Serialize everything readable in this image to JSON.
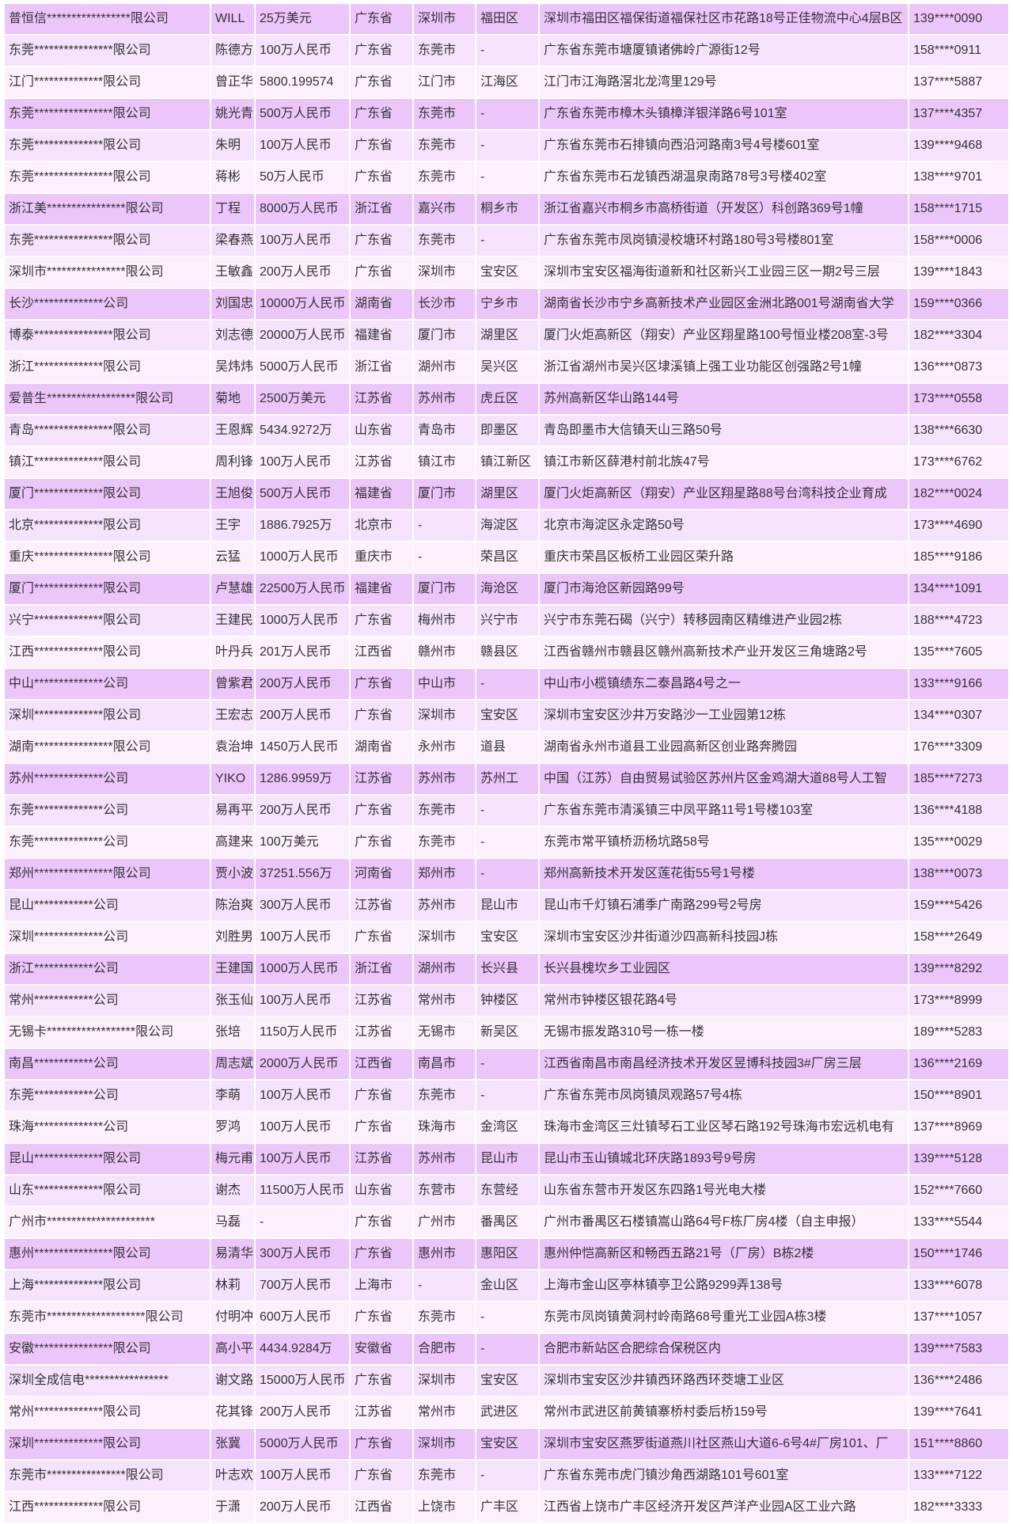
{
  "table": {
    "row_colors": [
      "#ecc6fb",
      "#f5e2fc",
      "#fcf0fd"
    ],
    "rows": [
      [
        "普恒信*****************限公司",
        "WILL",
        "25万美元",
        "广东省",
        "深圳市",
        "福田区",
        "深圳市福田区福保街道福保社区市花路18号正佳物流中心4层B区",
        "139****0090"
      ],
      [
        "东莞****************限公司",
        "陈德方",
        "100万人民币",
        "广东省",
        "东莞市",
        "-",
        "广东省东莞市塘厦镇诸佛岭广源街12号",
        "158****0911"
      ],
      [
        "江门**************限公司",
        "曾正华",
        "5800.199574",
        "广东省",
        "江门市",
        "江海区",
        "江门市江海路滘北龙湾里129号",
        "137****5887"
      ],
      [
        "东莞****************限公司",
        "姚光青",
        "500万人民币",
        "广东省",
        "东莞市",
        "-",
        "广东省东莞市樟木头镇樟洋银洋路6号101室",
        "137****4357"
      ],
      [
        "东莞**************限公司",
        "朱明",
        "100万人民币",
        "广东省",
        "东莞市",
        "-",
        "广东省东莞市石排镇向西沿河路南3号4号楼601室",
        "139****9468"
      ],
      [
        "东莞****************限公司",
        "蒋彬",
        "50万人民币",
        "广东省",
        "东莞市",
        "-",
        "广东省东莞市石龙镇西湖温泉南路78号3号楼402室",
        "138****9701"
      ],
      [
        "浙江美****************限公司",
        "丁程",
        "8000万人民币",
        "浙江省",
        "嘉兴市",
        "桐乡市",
        "浙江省嘉兴市桐乡市高桥街道（开发区）科创路369号1幢",
        "158****1715"
      ],
      [
        "东莞****************限公司",
        "梁春燕",
        "100万人民币",
        "广东省",
        "东莞市",
        "-",
        "广东省东莞市凤岗镇浸校塘环村路180号3号楼801室",
        "158****0006"
      ],
      [
        "深圳市****************限公司",
        "王敏鑫",
        "200万人民币",
        "广东省",
        "深圳市",
        "宝安区",
        "深圳市宝安区福海街道新和社区新兴工业园三区一期2号三层",
        "139****1843"
      ],
      [
        "长沙**************公司",
        "刘国忠",
        "10000万人民币",
        "湖南省",
        "长沙市",
        "宁乡市",
        "湖南省长沙市宁乡高新技术产业园区金洲北路001号湖南省大学",
        "159****0366"
      ],
      [
        "博泰****************限公司",
        "刘志德",
        "20000万人民币",
        "福建省",
        "厦门市",
        "湖里区",
        "厦门火炬高新区（翔安）产业区翔星路100号恒业楼208室-3号",
        "182****3304"
      ],
      [
        "浙江**************限公司",
        "吴炜炜",
        "5000万人民币",
        "浙江省",
        "湖州市",
        "吴兴区",
        "浙江省湖州市吴兴区埭溪镇上强工业功能区创强路2号1幢",
        "136****0873"
      ],
      [
        "爱普生******************限公司",
        "菊地",
        "2500万美元",
        "江苏省",
        "苏州市",
        "虎丘区",
        "苏州高新区华山路144号",
        "173****0558"
      ],
      [
        "青岛****************限公司",
        "王恩辉",
        "5434.9272万",
        "山东省",
        "青岛市",
        "即墨区",
        "青岛即墨市大信镇天山三路50号",
        "138****6630"
      ],
      [
        "镇江**************限公司",
        "周利锋",
        "100万人民币",
        "江苏省",
        "镇江市",
        "镇江新区",
        "镇江市新区薛港村前北族47号",
        "173****6762"
      ],
      [
        "厦门**************限公司",
        "王旭俊",
        "500万人民币",
        "福建省",
        "厦门市",
        "湖里区",
        "厦门火炬高新区（翔安）产业区翔星路88号台湾科技企业育成",
        "182****0024"
      ],
      [
        "北京**************限公司",
        "王宇",
        "1886.7925万",
        "北京市",
        "-",
        "海淀区",
        "北京市海淀区永定路50号",
        "173****4690"
      ],
      [
        "重庆****************限公司",
        "云猛",
        "1000万人民币",
        "重庆市",
        "-",
        "荣昌区",
        "重庆市荣昌区板桥工业园区荣升路",
        "185****9186"
      ],
      [
        "厦门**************限公司",
        "卢慧雄",
        "22500万人民币",
        "福建省",
        "厦门市",
        "海沧区",
        "厦门市海沧区新园路99号",
        "134****1091"
      ],
      [
        "兴宁**************限公司",
        "王建民",
        "1000万人民币",
        "广东省",
        "梅州市",
        "兴宁市",
        "兴宁市东莞石碣（兴宁）转移园南区精维进产业园2栋",
        "188****4723"
      ],
      [
        "江西**************限公司",
        "叶丹兵",
        "201万人民币",
        "江西省",
        "赣州市",
        "赣县区",
        "江西省赣州市赣县区赣州高新技术产业开发区三角塘路2号",
        "135****7605"
      ],
      [
        "中山**************公司",
        "曾紫君",
        "200万人民币",
        "广东省",
        "中山市",
        "-",
        "中山市小榄镇绩东二泰昌路4号之一",
        "133****9166"
      ],
      [
        "深圳**************限公司",
        "王宏志",
        "200万人民币",
        "广东省",
        "深圳市",
        "宝安区",
        "深圳市宝安区沙井万安路沙一工业园第12栋",
        "134****0307"
      ],
      [
        "湖南****************限公司",
        "袁治坤",
        "1450万人民币",
        "湖南省",
        "永州市",
        "道县",
        "湖南省永州市道县工业园高新区创业路奔腾园",
        "176****3309"
      ],
      [
        "苏州**************公司",
        "YIKO",
        "1286.9959万",
        "江苏省",
        "苏州市",
        "苏州工",
        "中国（江苏）自由贸易试验区苏州片区金鸡湖大道88号人工智",
        "185****7273"
      ],
      [
        "东莞**************公司",
        "易再平",
        "200万人民币",
        "广东省",
        "东莞市",
        "-",
        "广东省东莞市清溪镇三中凤平路11号1号楼103室",
        "136****4188"
      ],
      [
        "东莞**************公司",
        "高建来",
        "100万美元",
        "广东省",
        "东莞市",
        "-",
        "东莞市常平镇桥沥杨坑路58号",
        "135****0029"
      ],
      [
        "郑州****************限公司",
        "贾小波",
        "37251.556万",
        "河南省",
        "郑州市",
        "-",
        "郑州高新技术开发区莲花街55号1号楼",
        "138****0073"
      ],
      [
        "昆山************公司",
        "陈治爽",
        "300万人民币",
        "江苏省",
        "苏州市",
        "昆山市",
        "昆山市千灯镇石浦季广南路299号2号房",
        "159****5426"
      ],
      [
        "深圳**************公司",
        "刘胜男",
        "100万人民币",
        "广东省",
        "深圳市",
        "宝安区",
        "深圳市宝安区沙井街道沙四高新科技园J栋",
        "158****2649"
      ],
      [
        "浙江************公司",
        "王建国",
        "1000万人民币",
        "浙江省",
        "湖州市",
        "长兴县",
        "长兴县槐坎乡工业园区",
        "139****8292"
      ],
      [
        "常州************公司",
        "张玉仙",
        "100万人民币",
        "江苏省",
        "常州市",
        "钟楼区",
        "常州市钟楼区银花路4号",
        "173****8999"
      ],
      [
        "无锡卡******************限公司",
        "张培",
        "1150万人民币",
        "江苏省",
        "无锡市",
        "新吴区",
        "无锡市振发路310号一栋一楼",
        "189****5283"
      ],
      [
        "南昌************公司",
        "周志斌",
        "2000万人民币",
        "江西省",
        "南昌市",
        "-",
        "江西省南昌市南昌经济技术开发区昱博科技园3#厂房三层",
        "136****2169"
      ],
      [
        "东莞************公司",
        "李萌",
        "100万人民币",
        "广东省",
        "东莞市",
        "-",
        "广东省东莞市凤岗镇凤观路57号4栋",
        "150****8901"
      ],
      [
        "珠海**************公司",
        "罗鸿",
        "100万人民币",
        "广东省",
        "珠海市",
        "金湾区",
        "珠海市金湾区三灶镇琴石工业区琴石路192号珠海市宏远机电有",
        "137****8969"
      ],
      [
        "昆山**************限公司",
        "梅元甫",
        "100万人民币",
        "江苏省",
        "苏州市",
        "昆山市",
        "昆山市玉山镇城北环庆路1893号9号房",
        "139****5128"
      ],
      [
        "山东**************限公司",
        "谢杰",
        "11500万人民币",
        "山东省",
        "东营市",
        "东营经",
        "山东省东营市开发区东四路1号光电大楼",
        "152****7660"
      ],
      [
        "广州市**********************",
        "马磊",
        "-",
        "广东省",
        "广州市",
        "番禺区",
        "广州市番禺区石楼镇嵩山路64号F栋厂房4楼（自主申报）",
        "133****5544"
      ],
      [
        "惠州****************限公司",
        "易清华",
        "300万人民币",
        "广东省",
        "惠州市",
        "惠阳区",
        "惠州仲恺高新区和畅西五路21号（厂房）B栋2楼",
        "150****1746"
      ],
      [
        "上海**************限公司",
        "林莉",
        "700万人民币",
        "上海市",
        "-",
        "金山区",
        "上海市金山区亭林镇亭卫公路9299弄138号",
        "133****6078"
      ],
      [
        "东莞市********************限公司",
        "付明冲",
        "600万人民币",
        "广东省",
        "东莞市",
        "-",
        "东莞市凤岗镇黄洞村岭南路68号重光工业园A栋3楼",
        "137****1057"
      ],
      [
        "安徽****************限公司",
        "高小平",
        "4434.9284万",
        "安徽省",
        "合肥市",
        "-",
        "合肥市新站区合肥综合保税区内",
        "139****7583"
      ],
      [
        "深圳全成信电*****************",
        "谢文路",
        "15000万人民币",
        "广东省",
        "深圳市",
        "宝安区",
        "深圳市宝安区沙井镇西环路西环茭塘工业区",
        "136****2486"
      ],
      [
        "常州**************限公司",
        "花其锋",
        "200万人民币",
        "江苏省",
        "常州市",
        "武进区",
        "常州市武进区前黄镇寨桥村委后桥159号",
        "139****7641"
      ],
      [
        "深圳**************限公司",
        "张冀",
        "5000万人民币",
        "广东省",
        "深圳市",
        "宝安区",
        "深圳市宝安区燕罗街道燕川社区燕山大道6-6号4#厂房101、厂",
        "151****8860"
      ],
      [
        "东莞市****************限公司",
        "叶志欢",
        "100万人民币",
        "广东省",
        "东莞市",
        "-",
        "广东省东莞市虎门镇沙角西湖路101号601室",
        "133****7122"
      ],
      [
        "江西**************限公司",
        "于潇",
        "200万人民币",
        "江西省",
        "上饶市",
        "广丰区",
        "江西省上饶市广丰区经济开发区芦洋产业园A区工业六路",
        "182****3333"
      ]
    ]
  }
}
